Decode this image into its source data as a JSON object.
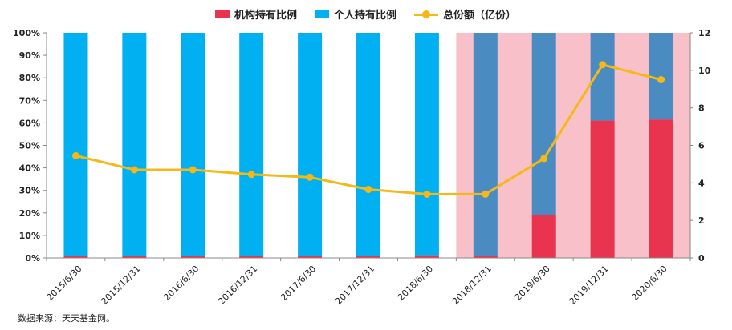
{
  "legend": {
    "institutional": "机构持有比例",
    "individual": "个人持有比例",
    "total": "总份额（亿份）"
  },
  "source": "数据来源：天天基金网。",
  "colors": {
    "institutional": "#E8344E",
    "individual": "#00B0F0",
    "individual_shaded": "#4A8BC2",
    "total_line": "#F5B816",
    "shade": "#F8C0C8"
  },
  "chart_data": {
    "type": "bar",
    "stacked": true,
    "categories": [
      "2015/6/30",
      "2015/12/31",
      "2016/6/30",
      "2016/12/31",
      "2017/6/30",
      "2017/12/31",
      "2018/6/30",
      "2018/12/31",
      "2019/6/30",
      "2019/12/31",
      "2020/6/30"
    ],
    "series": [
      {
        "name": "机构持有比例",
        "axis": "left",
        "unit": "%",
        "values": [
          0.8,
          0.8,
          0.8,
          0.8,
          0.8,
          1.0,
          1.2,
          1.0,
          19,
          61,
          61.5
        ]
      },
      {
        "name": "个人持有比例",
        "axis": "left",
        "unit": "%",
        "values": [
          99.2,
          99.2,
          99.2,
          99.2,
          99.2,
          99.0,
          98.8,
          99.0,
          81,
          39,
          38.5
        ]
      },
      {
        "name": "总份额（亿份）",
        "type": "line",
        "axis": "right",
        "values": [
          5.45,
          4.7,
          4.7,
          4.45,
          4.3,
          3.65,
          3.4,
          3.4,
          5.3,
          10.3,
          9.5
        ]
      }
    ],
    "shaded_from_category": "2018/12/31",
    "y_left": {
      "min": 0,
      "max": 100,
      "ticks": [
        "0%",
        "10%",
        "20%",
        "30%",
        "40%",
        "50%",
        "60%",
        "70%",
        "80%",
        "90%",
        "100%"
      ]
    },
    "y_right": {
      "min": 0,
      "max": 12,
      "ticks": [
        "0",
        "2",
        "4",
        "6",
        "8",
        "10",
        "12"
      ]
    },
    "grid": false,
    "legend_position": "top"
  }
}
